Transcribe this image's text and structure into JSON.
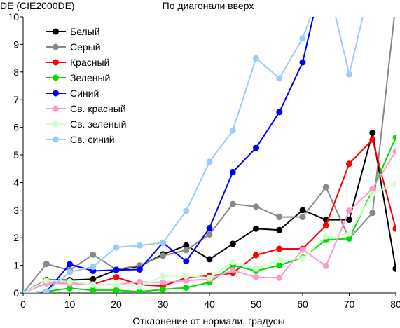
{
  "chart_data": {
    "type": "line",
    "title": "По диагонали вверх",
    "ylabel": "DE (CIE2000DE)",
    "xlabel": "Отклонение от нормали, градусы",
    "xlim": [
      0,
      80
    ],
    "ylim": [
      0,
      10
    ],
    "xticks": [
      "0",
      "10",
      "20",
      "30",
      "40",
      "50",
      "60",
      "70",
      "80"
    ],
    "yticks": [
      "0",
      "1",
      "2",
      "3",
      "4",
      "5",
      "6",
      "7",
      "8",
      "9",
      "10"
    ],
    "grid": false,
    "legend_position": "top-left",
    "x": [
      0,
      5,
      10,
      15,
      20,
      25,
      30,
      35,
      40,
      45,
      50,
      55,
      60,
      65,
      70,
      75,
      80
    ],
    "series": [
      {
        "name": "Белый",
        "color": "#000000",
        "marker": "circle",
        "values": [
          0,
          0.47,
          0.47,
          0.5,
          0.83,
          0.97,
          1.4,
          1.72,
          1.22,
          1.78,
          2.33,
          2.28,
          3.0,
          2.65,
          2.65,
          5.8,
          0.88
        ]
      },
      {
        "name": "Серый",
        "color": "#888888",
        "marker": "circle",
        "values": [
          0,
          1.05,
          0.82,
          1.39,
          0.85,
          1.0,
          1.35,
          1.55,
          2.12,
          3.22,
          3.13,
          2.75,
          2.75,
          3.83,
          1.97,
          2.9,
          10.5
        ]
      },
      {
        "name": "Красный",
        "color": "#ff0000",
        "marker": "circle",
        "values": [
          0,
          0.35,
          0.35,
          0.32,
          0.57,
          0.3,
          0.25,
          0.55,
          0.62,
          0.72,
          1.37,
          1.6,
          1.6,
          2.45,
          4.68,
          5.55,
          2.33
        ]
      },
      {
        "name": "Зеленый",
        "color": "#00dd00",
        "marker": "circle",
        "values": [
          0,
          0.05,
          0.17,
          0.1,
          0.1,
          0.04,
          0.13,
          0.19,
          0.38,
          1.0,
          0.8,
          1.0,
          1.28,
          1.92,
          1.97,
          3.72,
          5.63
        ]
      },
      {
        "name": "Синий",
        "color": "#0000ff",
        "marker": "circle",
        "values": [
          0,
          0.05,
          1.04,
          0.8,
          0.83,
          0.85,
          1.82,
          1.15,
          2.35,
          4.38,
          5.25,
          6.55,
          8.35,
          12.0,
          null,
          null,
          null
        ]
      },
      {
        "name": "Св. красный",
        "color": "#ff99cc",
        "marker": "circle",
        "values": [
          0,
          0.35,
          0.35,
          0.3,
          0.3,
          0.4,
          0.38,
          0.45,
          0.5,
          0.82,
          0.57,
          0.55,
          1.57,
          0.98,
          2.98,
          3.77,
          5.13
        ]
      },
      {
        "name": "Св. зеленый",
        "color": "#ccffcc",
        "marker": "circle",
        "values": [
          0,
          0.45,
          0.42,
          0.3,
          0.32,
          0.22,
          0.62,
          0.62,
          0.55,
          1.12,
          0.88,
          1.2,
          1.25,
          2.05,
          2.15,
          3.6,
          3.95
        ]
      },
      {
        "name": "Св. синий",
        "color": "#99ccff",
        "marker": "circle",
        "values": [
          0,
          0.05,
          0.75,
          0.95,
          1.65,
          1.72,
          1.82,
          2.97,
          4.75,
          5.88,
          8.5,
          7.77,
          9.22,
          11.5,
          7.92,
          11.5,
          null
        ]
      }
    ]
  }
}
